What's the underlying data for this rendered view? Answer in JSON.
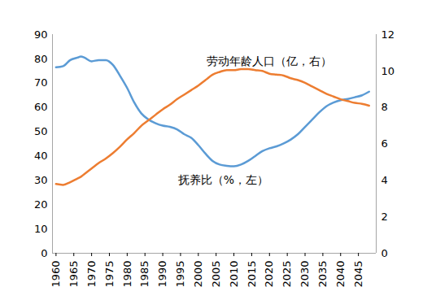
{
  "chart_data": {
    "type": "line",
    "x": [
      1960,
      1962,
      1964,
      1966,
      1967,
      1968,
      1970,
      1972,
      1974,
      1976,
      1978,
      1980,
      1982,
      1984,
      1986,
      1988,
      1990,
      1992,
      1994,
      1996,
      1998,
      2000,
      2002,
      2004,
      2006,
      2008,
      2010,
      2012,
      2014,
      2016,
      2018,
      2020,
      2022,
      2024,
      2026,
      2028,
      2030,
      2032,
      2034,
      2036,
      2038,
      2040,
      2042,
      2044,
      2046,
      2048
    ],
    "series": [
      {
        "name": "抚养比（%，左）",
        "color": "#5b9bd5",
        "values": [
          76.5,
          77,
          79.5,
          80.5,
          81,
          80.5,
          79,
          79.5,
          79.5,
          77.5,
          73,
          68,
          62,
          57.5,
          55,
          53.5,
          52.5,
          52,
          51,
          49,
          47.5,
          44.5,
          41,
          38,
          36.5,
          36,
          35.8,
          36.5,
          38,
          40,
          42,
          43.2,
          44,
          45.2,
          46.8,
          49,
          52,
          55,
          58,
          60.5,
          62,
          63,
          63.5,
          64.2,
          65,
          66.5
        ]
      },
      {
        "name": "劳动年龄人口（亿，右）",
        "color": "#ed7d31",
        "axis": "y2",
        "values": [
          3.8,
          3.75,
          3.9,
          4.1,
          4.2,
          4.35,
          4.65,
          4.95,
          5.2,
          5.5,
          5.85,
          6.25,
          6.6,
          7.0,
          7.3,
          7.6,
          7.9,
          8.15,
          8.45,
          8.7,
          8.95,
          9.2,
          9.5,
          9.8,
          9.95,
          10.05,
          10.05,
          10.1,
          10.1,
          10.05,
          10.0,
          9.85,
          9.8,
          9.75,
          9.6,
          9.5,
          9.35,
          9.15,
          8.95,
          8.75,
          8.6,
          8.45,
          8.35,
          8.25,
          8.2,
          8.1
        ]
      }
    ],
    "xlim": [
      1959,
      2050
    ],
    "xticks": [
      1960,
      1965,
      1970,
      1975,
      1980,
      1985,
      1990,
      1995,
      2000,
      2005,
      2010,
      2015,
      2020,
      2025,
      2030,
      2035,
      2040,
      2045
    ],
    "ylim": [
      0,
      90
    ],
    "yticks": [
      0,
      10,
      20,
      30,
      40,
      50,
      60,
      70,
      80,
      90
    ],
    "y2lim": [
      0,
      12
    ],
    "y2ticks": [
      0,
      2,
      4,
      6,
      8,
      10,
      12
    ],
    "grid": false
  }
}
